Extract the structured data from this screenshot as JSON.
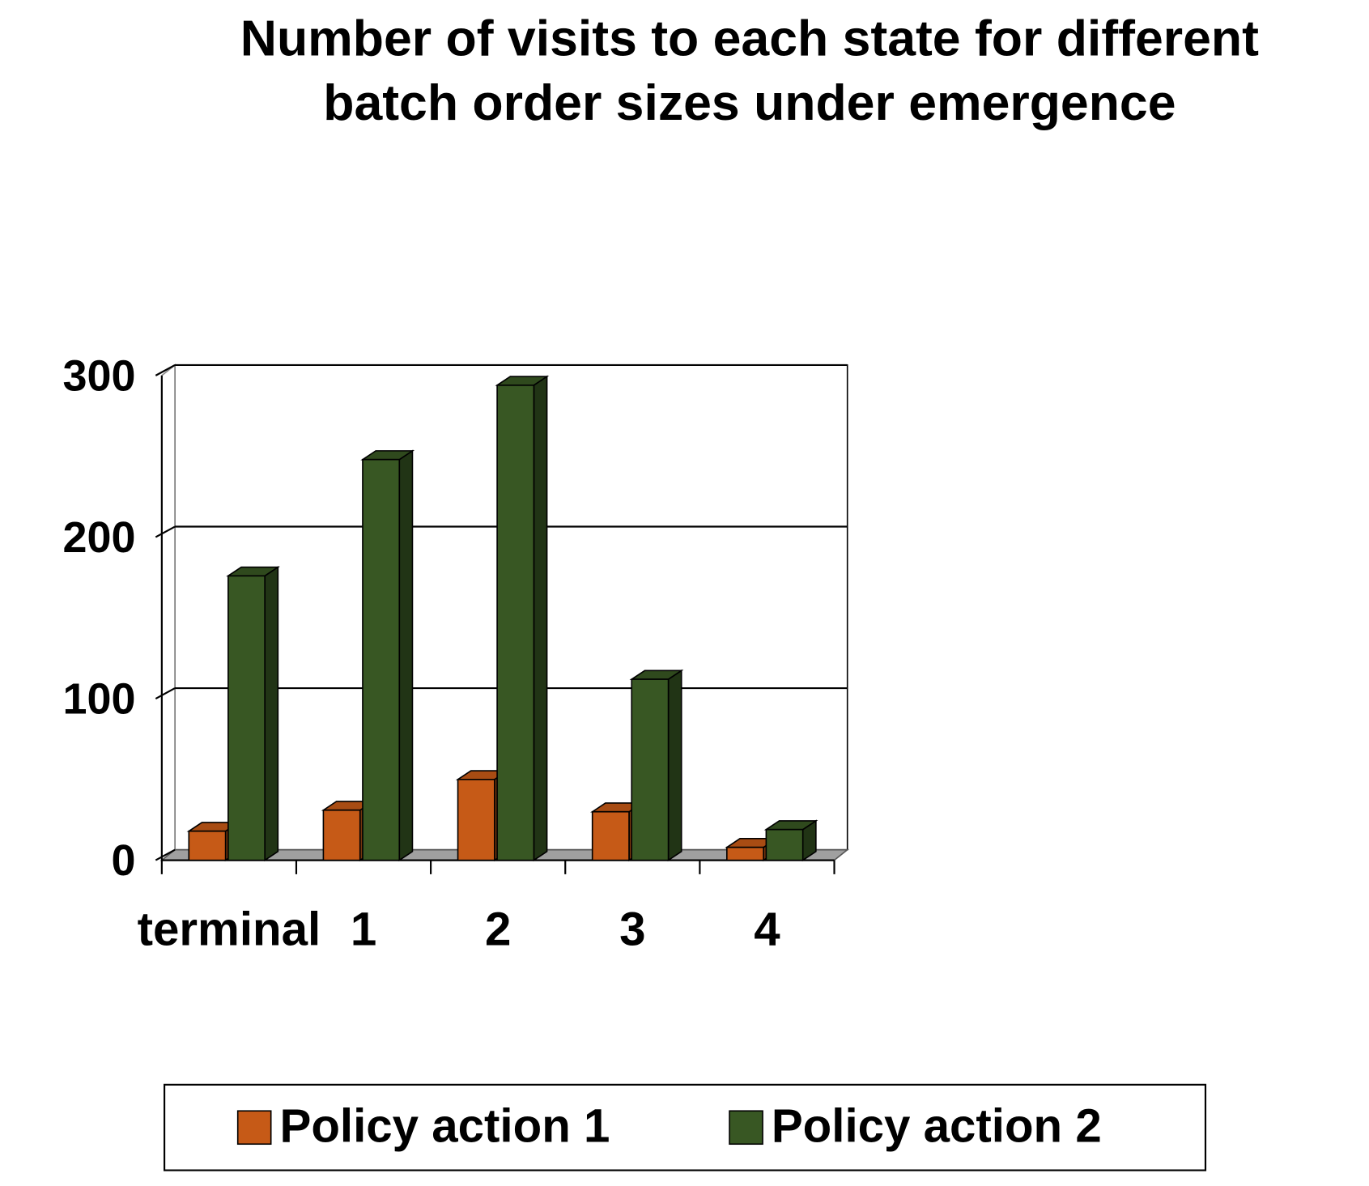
{
  "chart_data": {
    "type": "bar3d",
    "title": [
      "Number of visits to each state for different",
      "batch order sizes under emergence"
    ],
    "categories": [
      "terminal",
      "1",
      "2",
      "3",
      "4"
    ],
    "series": [
      {
        "name": "Policy action 1",
        "color": "#c65a17",
        "values": [
          18,
          31,
          50,
          30,
          8
        ]
      },
      {
        "name": "Policy action 2",
        "color": "#385723",
        "values": [
          176,
          248,
          294,
          112,
          19
        ]
      }
    ],
    "ylim": [
      0,
      300
    ],
    "yticks": [
      0,
      100,
      200,
      300
    ],
    "grid": true,
    "legend": "bottom"
  }
}
